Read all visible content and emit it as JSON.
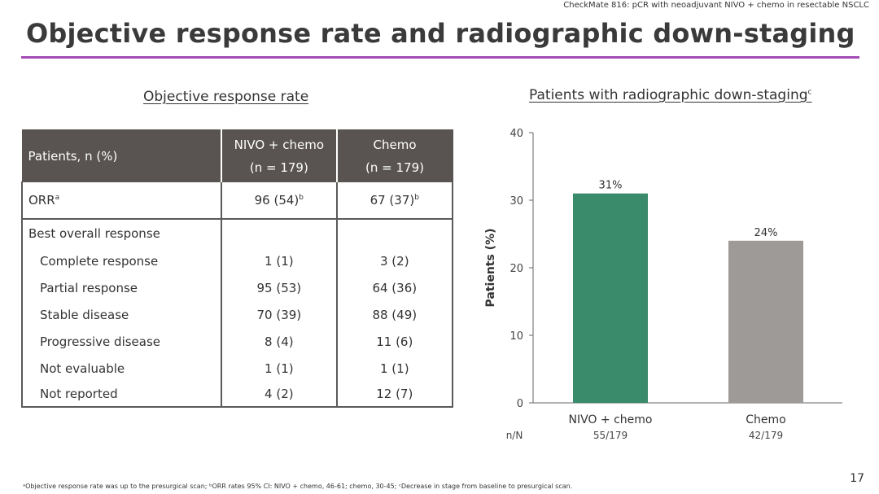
{
  "header_note": "CheckMate 816: pCR with neoadjuvant NIVO + chemo in resectable NSCLC",
  "title": "Objective response rate and radiographic down-staging",
  "table_section": {
    "heading": "Objective response rate"
  },
  "chart_section": {
    "heading": "Patients with radiographic down-staging",
    "heading_sup": "c"
  },
  "table": {
    "header": {
      "col0": "Patients, n (%)",
      "col1_line1": "NIVO + chemo",
      "col1_line2": "(n = 179)",
      "col2_line1": "Chemo",
      "col2_line2": "(n = 179)"
    },
    "orr": {
      "label": "ORR",
      "label_sup": "a",
      "nivo": "96 (54)",
      "nivo_sup": "b",
      "chemo": "67 (37)",
      "chemo_sup": "b"
    },
    "best_overall_label": "Best overall response",
    "rows": [
      {
        "label": "Complete response",
        "nivo": "1 (1)",
        "chemo": "3 (2)"
      },
      {
        "label": "Partial response",
        "nivo": "95 (53)",
        "chemo": "64 (36)"
      },
      {
        "label": "Stable disease",
        "nivo": "70 (39)",
        "chemo": "88 (49)"
      },
      {
        "label": "Progressive disease",
        "nivo": "8 (4)",
        "chemo": "11 (6)"
      },
      {
        "label": "Not evaluable",
        "nivo": "1 (1)",
        "chemo": "1 (1)"
      },
      {
        "label": "Not reported",
        "nivo": "4 (2)",
        "chemo": "12 (7)"
      }
    ]
  },
  "chart_data": {
    "type": "bar",
    "title": "Patients with radiographic down-staging",
    "ylabel": "Patients (%)",
    "xlabel": "",
    "ylim": [
      0,
      40
    ],
    "yticks": [
      0,
      10,
      20,
      30,
      40
    ],
    "categories": [
      "NIVO + chemo",
      "Chemo"
    ],
    "values": [
      31,
      24
    ],
    "value_labels": [
      "31%",
      "24%"
    ],
    "nn_label": "n/N",
    "nn_values": [
      "55/179",
      "42/179"
    ],
    "colors": [
      "#3a8a6c",
      "#9e9a98"
    ]
  },
  "footnote": "ᵃObjective response rate was up to the presurgical scan; ᵇORR rates 95% CI: NIVO + chemo, 46-61; chemo, 30-45; ᶜDecrease in stage from baseline to presurgical scan.",
  "page_number": "17",
  "colors": {
    "accent_rule": "#a24bb7",
    "table_header": "#595451"
  }
}
